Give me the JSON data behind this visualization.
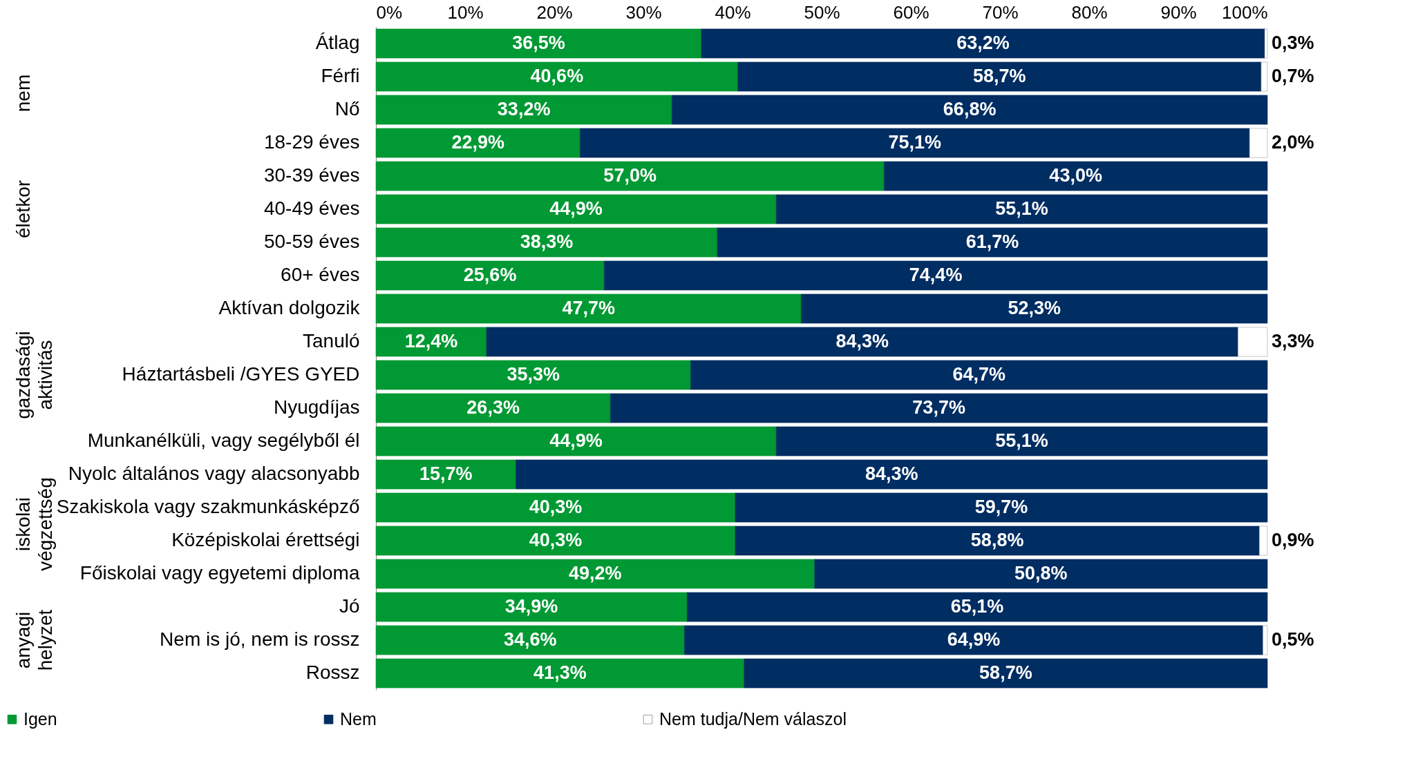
{
  "chart_data": {
    "type": "bar",
    "orientation": "horizontal",
    "stacked": true,
    "categories": [
      "Átlag",
      "Férfi",
      "Nő",
      "18-29 éves",
      "30-39 éves",
      "40-49 éves",
      "50-59 éves",
      "60+ éves",
      "Aktívan dolgozik",
      "Tanuló",
      "Háztartásbeli /GYES GYED",
      "Nyugdíjas",
      "Munkanélküli, vagy segélyből él",
      "Nyolc általános vagy alacsonyabb",
      "Szakiskola vagy szakmunkásképző",
      "Középiskolai érettségi",
      "Főiskolai vagy egyetemi diploma",
      "Jó",
      "Nem is jó, nem is rossz",
      "Rossz"
    ],
    "series": [
      {
        "name": "Igen",
        "color": "#009933",
        "values": [
          36.5,
          40.6,
          33.2,
          22.9,
          57.0,
          44.9,
          38.3,
          25.6,
          47.7,
          12.4,
          35.3,
          26.3,
          44.9,
          15.7,
          40.3,
          40.3,
          49.2,
          34.9,
          34.6,
          41.3
        ],
        "value_labels": [
          "36,5%",
          "40,6%",
          "33,2%",
          "22,9%",
          "57,0%",
          "44,9%",
          "38,3%",
          "25,6%",
          "47,7%",
          "12,4%",
          "35,3%",
          "26,3%",
          "44,9%",
          "15,7%",
          "40,3%",
          "40,3%",
          "49,2%",
          "34,9%",
          "34,6%",
          "41,3%"
        ]
      },
      {
        "name": "Nem",
        "color": "#002d62",
        "values": [
          63.2,
          58.7,
          66.8,
          75.1,
          43.0,
          55.1,
          61.7,
          74.4,
          52.3,
          84.3,
          64.7,
          73.7,
          55.1,
          84.3,
          59.7,
          58.8,
          50.8,
          65.1,
          64.9,
          58.7
        ],
        "value_labels": [
          "63,2%",
          "58,7%",
          "66,8%",
          "75,1%",
          "43,0%",
          "55,1%",
          "61,7%",
          "74,4%",
          "52,3%",
          "84,3%",
          "64,7%",
          "73,7%",
          "55,1%",
          "84,3%",
          "59,7%",
          "58,8%",
          "50,8%",
          "65,1%",
          "64,9%",
          "58,7%"
        ]
      },
      {
        "name": "Nem tudja/Nem válaszol",
        "color": "#ffffff",
        "values": [
          0.3,
          0.7,
          null,
          2.0,
          null,
          null,
          null,
          null,
          null,
          3.3,
          null,
          null,
          null,
          null,
          null,
          0.9,
          null,
          null,
          0.5,
          null
        ],
        "value_labels": [
          "0,3%",
          "0,7%",
          null,
          "2,0%",
          null,
          null,
          null,
          null,
          null,
          "3,3%",
          null,
          null,
          null,
          null,
          null,
          "0,9%",
          null,
          null,
          "0,5%",
          null
        ]
      }
    ],
    "xlim": [
      0,
      100
    ],
    "xticks": [
      {
        "value": 0,
        "label": "0%"
      },
      {
        "value": 10,
        "label": "10%"
      },
      {
        "value": 20,
        "label": "20%"
      },
      {
        "value": 30,
        "label": "30%"
      },
      {
        "value": 40,
        "label": "40%"
      },
      {
        "value": 50,
        "label": "50%"
      },
      {
        "value": 60,
        "label": "60%"
      },
      {
        "value": 70,
        "label": "70%"
      },
      {
        "value": 80,
        "label": "80%"
      },
      {
        "value": 90,
        "label": "90%"
      },
      {
        "value": 100,
        "label": "100%"
      }
    ],
    "annotations": [
      "nem",
      "életkor",
      "gazdasági aktivitás",
      "iskolai végzettség",
      "anyagi helyzet"
    ],
    "grid": false,
    "legend": "bottom"
  }
}
